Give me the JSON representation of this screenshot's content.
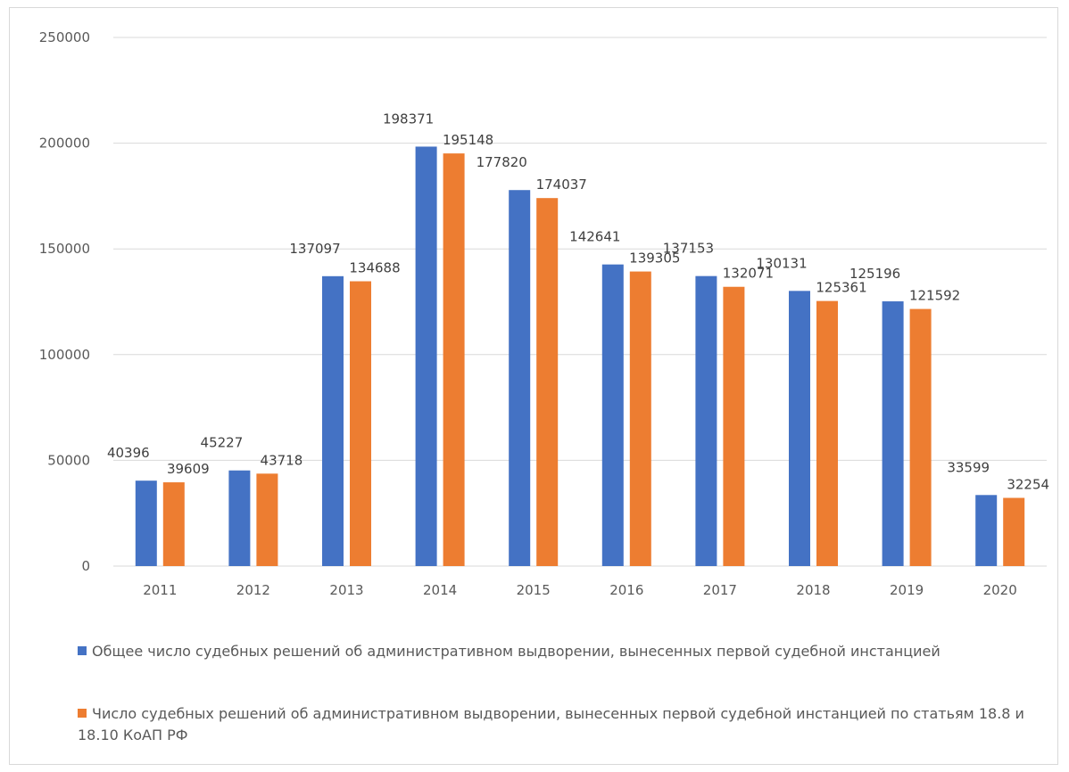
{
  "chart_data": {
    "type": "bar",
    "categories": [
      "2011",
      "2012",
      "2013",
      "2014",
      "2015",
      "2016",
      "2017",
      "2018",
      "2019",
      "2020"
    ],
    "series": [
      {
        "name": "Общее число судебных решений об административном выдворении, вынесенных первой судебной инстанцией",
        "color": "#4472c4",
        "values": [
          40396,
          45227,
          137097,
          198371,
          177820,
          142641,
          137153,
          130131,
          125196,
          33599
        ]
      },
      {
        "name": "Число судебных решений об административном выдворении, вынесенных первой судебной инстанцией по статьям 18.8 и 18.10 КоАП РФ",
        "color": "#ed7d31",
        "values": [
          39609,
          43718,
          134688,
          195148,
          174037,
          139305,
          132071,
          125361,
          121592,
          32254
        ]
      }
    ],
    "yticks": [
      "0",
      "50000",
      "100000",
      "150000",
      "200000",
      "250000"
    ],
    "ylim": [
      0,
      250000
    ],
    "grid": true,
    "legend_position": "bottom",
    "data_labels": true
  }
}
